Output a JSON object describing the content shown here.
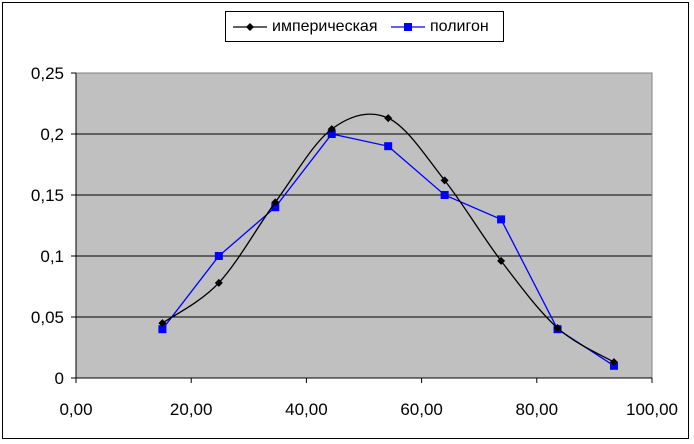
{
  "chart_data": {
    "type": "line",
    "xlim": [
      0,
      100
    ],
    "ylim": [
      0,
      0.25
    ],
    "x_ticks": [
      "0,00",
      "20,00",
      "40,00",
      "60,00",
      "80,00",
      "100,00"
    ],
    "y_ticks": [
      "0",
      "0,05",
      "0,1",
      "0,15",
      "0,2",
      "0,25"
    ],
    "grid": "horizontal",
    "plot_background": "#c0c0c0",
    "legend_position": "top-center",
    "series": [
      {
        "name": "империческая",
        "color": "#000000",
        "marker": "diamond",
        "smooth": true,
        "x": [
          15,
          24.8,
          34.6,
          44.4,
          54.2,
          64,
          73.8,
          83.6,
          93.4
        ],
        "y": [
          0.045,
          0.078,
          0.144,
          0.204,
          0.213,
          0.162,
          0.096,
          0.041,
          0.013
        ]
      },
      {
        "name": "полигон",
        "color": "#0000ff",
        "marker": "square",
        "smooth": false,
        "x": [
          15,
          24.8,
          34.6,
          44.4,
          54.2,
          64,
          73.8,
          83.6,
          93.4
        ],
        "y": [
          0.04,
          0.1,
          0.14,
          0.2,
          0.19,
          0.15,
          0.13,
          0.04,
          0.01
        ]
      }
    ]
  }
}
